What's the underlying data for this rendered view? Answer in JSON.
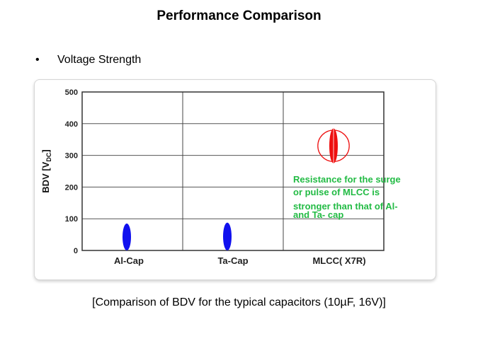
{
  "slide": {
    "title": "Performance Comparison",
    "bullet": "Voltage Strength",
    "caption": "[Comparison of BDV for the typical capacitors (10µF, 16V)]"
  },
  "chart_data": {
    "type": "scatter",
    "categories": [
      "Al-Cap",
      "Ta-Cap",
      "MLCC( X7R)"
    ],
    "y_ticks": [
      0,
      100,
      200,
      300,
      400,
      500
    ],
    "ylim": [
      0,
      500
    ],
    "ylabel": "BDV [V",
    "ylabel_sub": "DC",
    "ylabel_end": "]",
    "grid": true,
    "series": [
      {
        "points": [
          {
            "category": "Al-Cap",
            "low": 0,
            "high": 85,
            "color": "#1010ee"
          },
          {
            "category": "Ta-Cap",
            "low": 0,
            "high": 88,
            "color": "#1010ee"
          },
          {
            "category": "MLCC( X7R)",
            "low": 275,
            "high": 385,
            "color": "#ee1010",
            "highlighted": true
          }
        ]
      }
    ],
    "annotation": {
      "lines": [
        "Resistance for the  surge",
        "or pulse of MLCC is",
        "stronger than that of Al-",
        "and Ta- cap"
      ],
      "color": "#22bb44"
    }
  }
}
